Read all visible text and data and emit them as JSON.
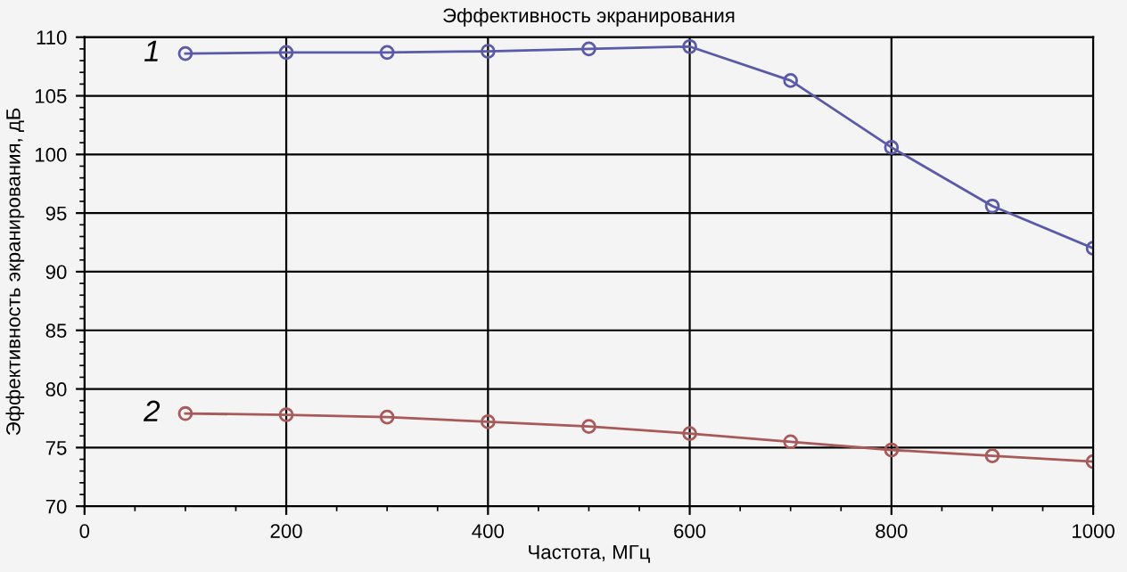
{
  "chart_data": {
    "type": "line",
    "title": "Эффективность экранирования",
    "xlabel": "Частота, МГц",
    "ylabel": "Эффективность экранирования, дБ",
    "x": [
      100,
      200,
      300,
      400,
      500,
      600,
      700,
      800,
      900,
      1000
    ],
    "series": [
      {
        "name": "1",
        "color": "#5a5aa8",
        "values": [
          108.6,
          108.7,
          108.7,
          108.8,
          109.0,
          109.2,
          106.3,
          100.6,
          95.6,
          92.0
        ]
      },
      {
        "name": "2",
        "color": "#a85a5a",
        "values": [
          77.9,
          77.8,
          77.6,
          77.2,
          76.8,
          76.2,
          75.5,
          74.8,
          74.3,
          73.8
        ]
      }
    ],
    "xlim": [
      0,
      1000
    ],
    "xticks": [
      0,
      200,
      400,
      600,
      800,
      1000
    ],
    "ylim": [
      70,
      110
    ],
    "yticks": [
      70,
      75,
      80,
      85,
      90,
      95,
      100,
      105,
      110
    ],
    "grid": true,
    "marker": "circle",
    "line_style": "solid",
    "legend": false
  }
}
